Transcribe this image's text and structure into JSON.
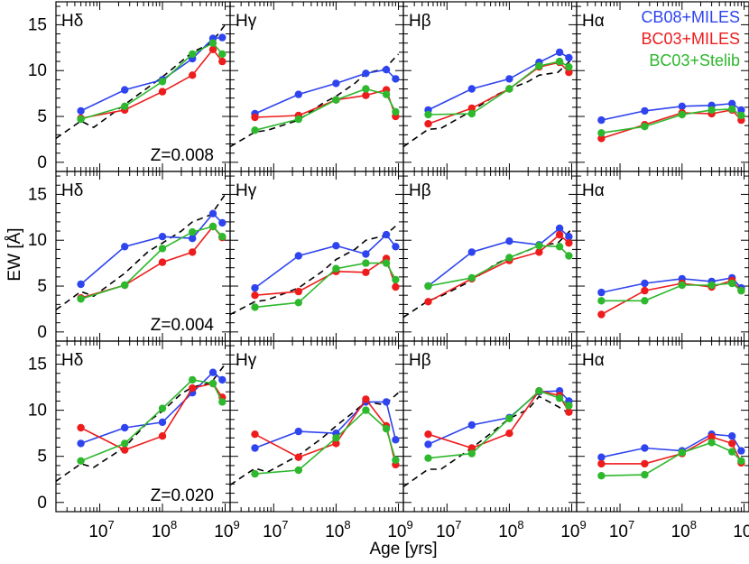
{
  "chart_data": {
    "type": "line",
    "xlabel": "Age [yrs]",
    "ylabel": "EW [Å]",
    "x_scale": "log",
    "xlim": [
      2000000,
      1200000000
    ],
    "ylim": [
      -1,
      17.5
    ],
    "x_ticks": [
      {
        "value": 10000000,
        "base": "10",
        "exp": "7"
      },
      {
        "value": 100000000,
        "base": "10",
        "exp": "8"
      },
      {
        "value": 1000000000,
        "base": "10",
        "exp": "9"
      }
    ],
    "y_ticks": [
      0,
      5,
      10,
      15
    ],
    "legend": {
      "placement": "top-right",
      "entries": [
        {
          "name": "CB08+MILES",
          "color": "#2e44ee"
        },
        {
          "name": "BC03+MILES",
          "color": "#ee1c1c"
        },
        {
          "name": "BC03+Stelib",
          "color": "#2db82d"
        }
      ]
    },
    "dashed_series_color": "#000000",
    "ages": [
      5000000,
      25000000,
      100000000,
      300000000,
      640000000,
      900000000
    ],
    "rows": [
      {
        "metallicity_label": "Z=0.008",
        "panels": [
          {
            "line": "Hδ",
            "CB08+MILES": [
              5.6,
              7.9,
              9.0,
              11.3,
              13.5,
              13.6
            ],
            "BC03+MILES": [
              4.8,
              5.7,
              7.7,
              9.5,
              12.3,
              11.0
            ],
            "BC03+Stelib": [
              4.7,
              6.1,
              8.8,
              11.8,
              13.0,
              11.8
            ],
            "dashed": [
              [
                2000000,
                2.6
              ],
              [
                5000000,
                4.5
              ],
              [
                8000000,
                3.8
              ],
              [
                25000000,
                6.3
              ],
              [
                60000000,
                8.2
              ],
              [
                100000000,
                9.3
              ],
              [
                200000000,
                11.0
              ],
              [
                300000000,
                12.0
              ],
              [
                600000000,
                13.0
              ],
              [
                1000000000,
                15.0
              ]
            ]
          },
          {
            "line": "Hγ",
            "CB08+MILES": [
              5.3,
              7.4,
              8.6,
              9.7,
              10.1,
              9.1
            ],
            "BC03+MILES": [
              4.9,
              5.1,
              6.8,
              7.3,
              7.9,
              5.0
            ],
            "BC03+Stelib": [
              3.5,
              4.7,
              6.8,
              8.0,
              7.4,
              5.5
            ],
            "dashed": [
              [
                2000000,
                1.7
              ],
              [
                5000000,
                3.3
              ],
              [
                8000000,
                3.5
              ],
              [
                25000000,
                4.6
              ],
              [
                60000000,
                6.4
              ],
              [
                100000000,
                7.2
              ],
              [
                200000000,
                8.6
              ],
              [
                300000000,
                9.7
              ],
              [
                600000000,
                10.2
              ],
              [
                1000000000,
                11.8
              ]
            ]
          },
          {
            "line": "Hβ",
            "CB08+MILES": [
              5.7,
              8.0,
              9.1,
              10.9,
              12.0,
              11.4
            ],
            "BC03+MILES": [
              4.2,
              5.9,
              8.0,
              10.4,
              10.9,
              9.8
            ],
            "BC03+Stelib": [
              5.2,
              5.3,
              8.0,
              10.5,
              11.0,
              10.4
            ],
            "dashed": [
              [
                2000000,
                1.7
              ],
              [
                5000000,
                3.6
              ],
              [
                8000000,
                3.7
              ],
              [
                25000000,
                5.6
              ],
              [
                60000000,
                7.3
              ],
              [
                100000000,
                8.0
              ],
              [
                200000000,
                8.8
              ],
              [
                300000000,
                9.5
              ],
              [
                600000000,
                9.8
              ],
              [
                1000000000,
                11.2
              ]
            ]
          },
          {
            "line": "Hα",
            "CB08+MILES": [
              4.6,
              5.6,
              6.1,
              6.2,
              6.4,
              5.7
            ],
            "BC03+MILES": [
              2.6,
              4.1,
              5.4,
              5.3,
              5.7,
              4.6
            ],
            "BC03+Stelib": [
              3.2,
              3.9,
              5.2,
              5.7,
              5.8,
              5.1
            ],
            "dashed": []
          }
        ]
      },
      {
        "metallicity_label": "Z=0.004",
        "panels": [
          {
            "line": "Hδ",
            "CB08+MILES": [
              5.2,
              9.3,
              10.4,
              10.2,
              12.9,
              11.9
            ],
            "BC03+MILES": [
              3.7,
              5.1,
              7.6,
              8.7,
              11.5,
              10.3
            ],
            "BC03+Stelib": [
              3.6,
              5.1,
              9.1,
              10.9,
              11.5,
              10.4
            ],
            "dashed": [
              [
                2000000,
                2.4
              ],
              [
                5000000,
                4.4
              ],
              [
                8000000,
                3.9
              ],
              [
                25000000,
                6.4
              ],
              [
                60000000,
                8.8
              ],
              [
                100000000,
                9.7
              ],
              [
                200000000,
                11.0
              ],
              [
                300000000,
                12.0
              ],
              [
                600000000,
                12.8
              ],
              [
                1000000000,
                15.0
              ]
            ]
          },
          {
            "line": "Hγ",
            "CB08+MILES": [
              4.8,
              8.3,
              9.4,
              8.5,
              10.6,
              9.3
            ],
            "BC03+MILES": [
              4.0,
              4.4,
              6.6,
              6.5,
              8.0,
              4.9
            ],
            "BC03+Stelib": [
              2.7,
              3.2,
              6.9,
              7.5,
              7.5,
              5.7
            ],
            "dashed": [
              [
                2000000,
                1.9
              ],
              [
                5000000,
                3.3
              ],
              [
                8000000,
                3.5
              ],
              [
                25000000,
                4.8
              ],
              [
                60000000,
                6.6
              ],
              [
                100000000,
                7.9
              ],
              [
                200000000,
                9.0
              ],
              [
                300000000,
                10.0
              ],
              [
                600000000,
                10.5
              ],
              [
                1000000000,
                11.8
              ]
            ]
          },
          {
            "line": "Hβ",
            "CB08+MILES": [
              5.0,
              8.7,
              9.9,
              9.5,
              11.3,
              10.4
            ],
            "BC03+MILES": [
              3.3,
              5.8,
              7.8,
              8.7,
              10.6,
              9.7
            ],
            "BC03+Stelib": [
              5.0,
              5.9,
              8.1,
              9.4,
              9.3,
              8.3
            ],
            "dashed": [
              [
                2000000,
                1.6
              ],
              [
                5000000,
                3.4
              ],
              [
                8000000,
                3.9
              ],
              [
                25000000,
                5.6
              ],
              [
                60000000,
                7.4
              ],
              [
                100000000,
                8.1
              ],
              [
                200000000,
                8.9
              ],
              [
                300000000,
                9.4
              ],
              [
                600000000,
                9.7
              ],
              [
                1000000000,
                11.2
              ]
            ]
          },
          {
            "line": "Hα",
            "CB08+MILES": [
              4.3,
              5.3,
              5.8,
              5.5,
              5.9,
              4.8
            ],
            "BC03+MILES": [
              1.9,
              4.5,
              5.3,
              4.9,
              5.6,
              4.5
            ],
            "BC03+Stelib": [
              3.4,
              3.4,
              5.1,
              5.1,
              5.3,
              4.5
            ],
            "dashed": []
          }
        ]
      },
      {
        "metallicity_label": "Z=0.020",
        "panels": [
          {
            "line": "Hδ",
            "CB08+MILES": [
              6.4,
              8.1,
              8.7,
              11.9,
              14.1,
              13.3
            ],
            "BC03+MILES": [
              8.1,
              5.7,
              7.2,
              12.4,
              12.9,
              11.4
            ],
            "BC03+Stelib": [
              4.5,
              6.4,
              10.2,
              13.3,
              12.9,
              10.9
            ],
            "dashed": [
              [
                2000000,
                2.3
              ],
              [
                5000000,
                4.2
              ],
              [
                8000000,
                3.8
              ],
              [
                25000000,
                6.0
              ],
              [
                60000000,
                8.8
              ],
              [
                100000000,
                9.9
              ],
              [
                200000000,
                11.8
              ],
              [
                300000000,
                12.5
              ],
              [
                600000000,
                13.0
              ],
              [
                1000000000,
                15.0
              ]
            ]
          },
          {
            "line": "Hγ",
            "CB08+MILES": [
              5.9,
              7.7,
              7.5,
              10.9,
              10.9,
              6.8
            ],
            "BC03+MILES": [
              7.4,
              4.9,
              6.4,
              11.2,
              8.3,
              4.1
            ],
            "BC03+Stelib": [
              3.1,
              3.5,
              7.0,
              10.0,
              8.0,
              4.6
            ],
            "dashed": [
              [
                2000000,
                1.9
              ],
              [
                5000000,
                3.7
              ],
              [
                8000000,
                3.3
              ],
              [
                25000000,
                5.1
              ],
              [
                60000000,
                7.0
              ],
              [
                100000000,
                8.3
              ],
              [
                200000000,
                9.9
              ],
              [
                300000000,
                10.9
              ],
              [
                600000000,
                10.6
              ],
              [
                1000000000,
                11.9
              ]
            ]
          },
          {
            "line": "Hβ",
            "CB08+MILES": [
              6.3,
              8.4,
              9.2,
              12.0,
              12.1,
              11.0
            ],
            "BC03+MILES": [
              7.4,
              5.9,
              7.5,
              12.1,
              11.6,
              9.8
            ],
            "BC03+Stelib": [
              4.8,
              5.3,
              9.1,
              12.1,
              11.3,
              10.5
            ],
            "dashed": [
              [
                2000000,
                1.7
              ],
              [
                5000000,
                3.6
              ],
              [
                8000000,
                3.6
              ],
              [
                25000000,
                5.9
              ],
              [
                60000000,
                7.9
              ],
              [
                100000000,
                9.1
              ],
              [
                200000000,
                10.1
              ],
              [
                300000000,
                11.5
              ],
              [
                600000000,
                10.4
              ],
              [
                1000000000,
                9.5
              ]
            ]
          },
          {
            "line": "Hα",
            "CB08+MILES": [
              4.9,
              5.9,
              5.6,
              7.4,
              7.2,
              5.6
            ],
            "BC03+MILES": [
              4.2,
              4.2,
              5.3,
              7.1,
              6.4,
              4.3
            ],
            "BC03+Stelib": [
              2.9,
              3.0,
              5.4,
              6.5,
              5.5,
              4.5
            ],
            "dashed": []
          }
        ]
      }
    ]
  }
}
